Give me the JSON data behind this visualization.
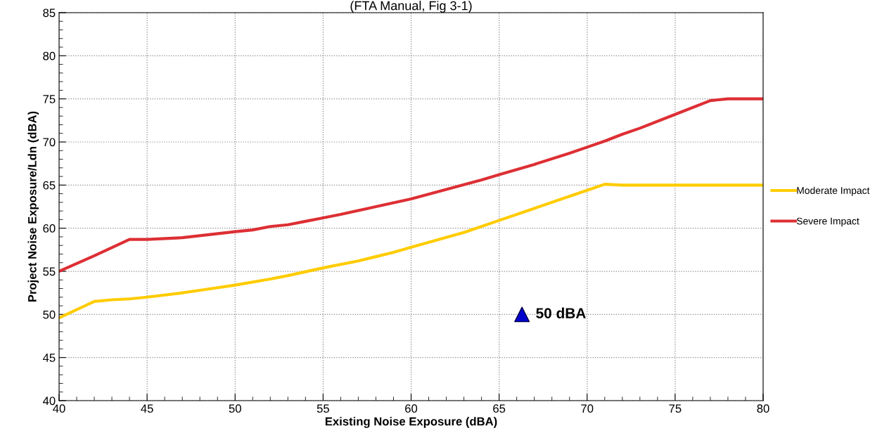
{
  "chart_data": {
    "type": "line",
    "title": "(FTA Manual, Fig 3-1)",
    "xlabel": "Existing Noise Exposure (dBA)",
    "ylabel": "Project Noise Exposure/Ldn (dBA)",
    "xlim": [
      40,
      80
    ],
    "xticks": [
      40,
      45,
      50,
      55,
      60,
      65,
      70,
      75,
      80
    ],
    "ylim": [
      40,
      85
    ],
    "yticks": [
      40,
      45,
      50,
      55,
      60,
      65,
      70,
      75,
      80,
      85
    ],
    "grid": true,
    "legend": "right",
    "marker": "none",
    "line_style": "solid",
    "series": [
      {
        "name": "Moderate Impact",
        "color": "#ffcc00",
        "x": [
          40,
          42,
          43,
          44,
          45,
          47,
          48,
          50,
          52,
          53,
          55,
          57,
          58,
          59,
          60,
          63,
          65,
          67,
          69,
          70,
          71,
          72,
          80
        ],
        "values": [
          49.6,
          51.5,
          51.7,
          51.8,
          52.0,
          52.5,
          52.8,
          53.4,
          54.1,
          54.5,
          55.4,
          56.2,
          56.7,
          57.2,
          57.8,
          59.5,
          60.9,
          62.3,
          63.7,
          64.4,
          65.1,
          65.0,
          65.0
        ]
      },
      {
        "name": "Severe Impact",
        "color": "#dd2f34",
        "x": [
          40,
          42,
          44,
          45,
          47,
          50,
          51,
          52,
          53,
          54,
          55,
          56,
          58,
          60,
          62,
          64,
          65,
          66,
          67,
          69,
          70,
          71,
          72,
          73,
          75,
          77,
          78,
          80
        ],
        "values": [
          55,
          56.8,
          58.7,
          58.7,
          58.9,
          59.6,
          59.8,
          60.2,
          60.4,
          60.8,
          61.2,
          61.6,
          62.5,
          63.4,
          64.5,
          65.6,
          66.2,
          66.8,
          67.4,
          68.7,
          69.4,
          70.1,
          70.9,
          71.6,
          73.2,
          74.8,
          75,
          75
        ]
      },
      {
        "type": "scatter",
        "color": "#0000cc",
        "marker": "triangle",
        "x": [
          66.3
        ],
        "values": [
          50
        ]
      }
    ],
    "annotations": [
      {
        "text": "50 dBA",
        "x": 66.3,
        "y": 50
      }
    ]
  }
}
